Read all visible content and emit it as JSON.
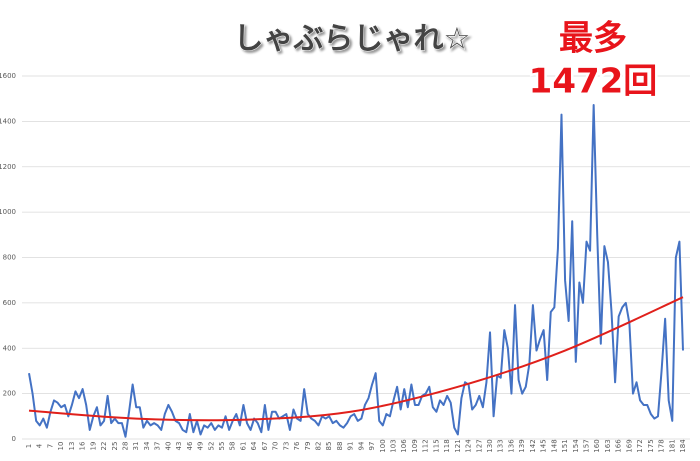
{
  "chart_data": {
    "type": "line",
    "title": "しゃぶらじゃれ☆",
    "annotation": [
      "最多",
      "1472回"
    ],
    "categories": [
      "1",
      null,
      null,
      "4",
      null,
      null,
      "7",
      null,
      null,
      "10",
      null,
      null,
      "13",
      null,
      null,
      "16",
      null,
      null,
      "19",
      null,
      null,
      "22",
      null,
      null,
      "25",
      null,
      null,
      "28",
      null,
      null,
      "31",
      null,
      null,
      "34",
      null,
      null,
      "37",
      null,
      null,
      "40",
      null,
      null,
      "43",
      null,
      null,
      "46",
      null,
      null,
      "49",
      null,
      null,
      "52",
      null,
      null,
      "55",
      null,
      null,
      "58",
      null,
      null,
      "61",
      null,
      null,
      "64",
      null,
      null,
      "67",
      null,
      null,
      "70",
      null,
      null,
      "73",
      null,
      null,
      "76",
      null,
      null,
      "79",
      null,
      null,
      "82",
      null,
      null,
      "85",
      null,
      null,
      "88",
      null,
      null,
      "91",
      null,
      null,
      "94",
      null,
      null,
      "97",
      null,
      null,
      "100",
      null,
      null,
      "103",
      null,
      null,
      "106",
      null,
      null,
      "109",
      null,
      null,
      "112",
      null,
      null,
      "115",
      null,
      null,
      "118",
      null,
      null,
      "121",
      null,
      null,
      "124",
      null,
      null,
      "127",
      null,
      null,
      "130",
      null,
      null,
      "133",
      null,
      null,
      "136",
      null,
      null,
      "139",
      null,
      null,
      "142",
      null,
      null,
      "145",
      null,
      null,
      "148",
      null,
      null,
      "151",
      null,
      null,
      "154",
      null,
      null,
      "157",
      null,
      null,
      "160",
      null,
      null,
      "163",
      null,
      null,
      "166",
      null,
      null,
      "169",
      null,
      null,
      "172",
      null,
      null,
      "175",
      null,
      null,
      "178",
      null,
      null,
      "181",
      null,
      null,
      "184"
    ],
    "series": [
      {
        "color": "#4472c4",
        "values": [
          290,
          200,
          80,
          60,
          90,
          50,
          120,
          170,
          160,
          140,
          150,
          100,
          150,
          210,
          180,
          220,
          150,
          40,
          100,
          140,
          60,
          80,
          190,
          70,
          90,
          70,
          70,
          10,
          120,
          240,
          140,
          140,
          50,
          80,
          60,
          70,
          60,
          40,
          110,
          150,
          120,
          80,
          70,
          40,
          30,
          110,
          30,
          80,
          20,
          60,
          50,
          70,
          40,
          60,
          50,
          100,
          40,
          80,
          110,
          60,
          150,
          70,
          40,
          90,
          70,
          30,
          150,
          40,
          120,
          120,
          90,
          100,
          110,
          40,
          130,
          90,
          80,
          220,
          110,
          90,
          80,
          60,
          100,
          90,
          100,
          70,
          80,
          60,
          50,
          70,
          100,
          110,
          80,
          90,
          150,
          180,
          240,
          290,
          80,
          60,
          110,
          100,
          170,
          230,
          130,
          220,
          140,
          240,
          150,
          150,
          190,
          200,
          230,
          140,
          120,
          170,
          150,
          190,
          160,
          50,
          20,
          180,
          250,
          240,
          130,
          150,
          190,
          140,
          250,
          470,
          100,
          280,
          270,
          480,
          400,
          200,
          590,
          260,
          200,
          230,
          330,
          590,
          390,
          440,
          480,
          260,
          560,
          580,
          840,
          1430,
          700,
          520,
          960,
          340,
          690,
          600,
          870,
          830,
          1472,
          900,
          420,
          850,
          780,
          560,
          250,
          540,
          580,
          600,
          510,
          200,
          250,
          170,
          150,
          150,
          110,
          90,
          100,
          300,
          530,
          170,
          80,
          800,
          870,
          390
        ]
      }
    ],
    "trendline": {
      "color": "#e0201b",
      "x": [
        1,
        31,
        61,
        91,
        121,
        151,
        184
      ],
      "values": [
        125,
        90,
        85,
        120,
        230,
        390,
        625
      ]
    },
    "ylim": [
      0,
      1600
    ],
    "yticks": [
      0,
      200,
      400,
      600,
      800,
      1000,
      1200,
      1400,
      1600
    ],
    "grid": true
  }
}
